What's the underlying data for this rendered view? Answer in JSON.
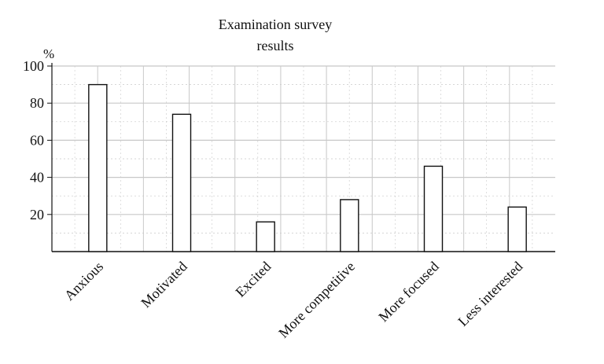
{
  "chart_data": {
    "type": "bar",
    "title_lines": [
      "Examination survey",
      "results"
    ],
    "ylabel": "%",
    "xlabel": "",
    "categories": [
      "Anxious",
      "Motivated",
      "Excited",
      "More competitive",
      "More focused",
      "Less interested"
    ],
    "values": [
      90,
      74,
      16,
      28,
      46,
      24
    ],
    "ylim": [
      0,
      100
    ],
    "yticks": [
      "20",
      "40",
      "60",
      "80",
      "100"
    ],
    "grid": true,
    "bar_fill": "#ffffff",
    "bar_stroke": "#111111",
    "grid_color": "#c8c8c8"
  }
}
